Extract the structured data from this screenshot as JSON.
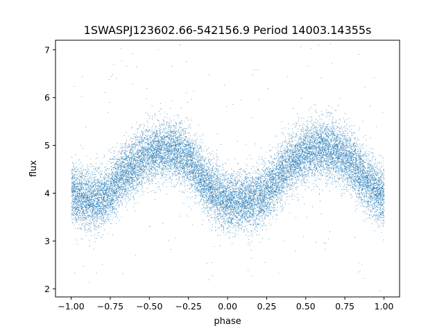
{
  "chart_data": {
    "type": "scatter",
    "title": "1SWASPJ123602.66-542156.9 Period 14003.14355s",
    "xlabel": "phase",
    "ylabel": "flux",
    "xlim": [
      -1.1,
      1.1
    ],
    "ylim": [
      1.83,
      7.2
    ],
    "xticks": [
      -1.0,
      -0.75,
      -0.5,
      -0.25,
      0.0,
      0.25,
      0.5,
      0.75,
      1.0
    ],
    "xtick_labels": [
      "−1.00",
      "−0.75",
      "−0.50",
      "−0.25",
      "0.00",
      "0.25",
      "0.50",
      "0.75",
      "1.00"
    ],
    "yticks": [
      2,
      3,
      4,
      5,
      6,
      7
    ],
    "ytick_labels": [
      "2",
      "3",
      "4",
      "5",
      "6",
      "7"
    ],
    "grid": false,
    "legend": "none",
    "marker_color": "#1f77b4",
    "series": [
      {
        "phase_x": [
          -1.0,
          -0.95,
          -0.9,
          -0.85,
          -0.8,
          -0.75,
          -0.7,
          -0.65,
          -0.6,
          -0.55,
          -0.5,
          -0.45,
          -0.4,
          -0.35,
          -0.3,
          -0.25,
          -0.2,
          -0.15,
          -0.1,
          -0.05,
          0.0,
          0.05,
          0.1,
          0.15,
          0.2,
          0.25,
          0.3,
          0.35,
          0.4,
          0.45,
          0.5,
          0.55,
          0.6,
          0.65,
          0.7,
          0.75,
          0.8,
          0.85,
          0.9,
          0.95,
          1.0
        ],
        "mean_flux": [
          4.05,
          3.9,
          3.85,
          3.86,
          3.9,
          4.05,
          4.25,
          4.45,
          4.6,
          4.75,
          4.82,
          4.88,
          4.9,
          4.9,
          4.85,
          4.72,
          4.5,
          4.25,
          4.05,
          3.92,
          3.85,
          3.82,
          3.82,
          3.85,
          3.92,
          4.05,
          4.25,
          4.45,
          4.62,
          4.75,
          4.85,
          4.9,
          4.92,
          4.92,
          4.88,
          4.78,
          4.6,
          4.4,
          4.2,
          4.05,
          3.95
        ],
        "typical_scatter": 0.3,
        "sample_size": 18000
      }
    ]
  }
}
